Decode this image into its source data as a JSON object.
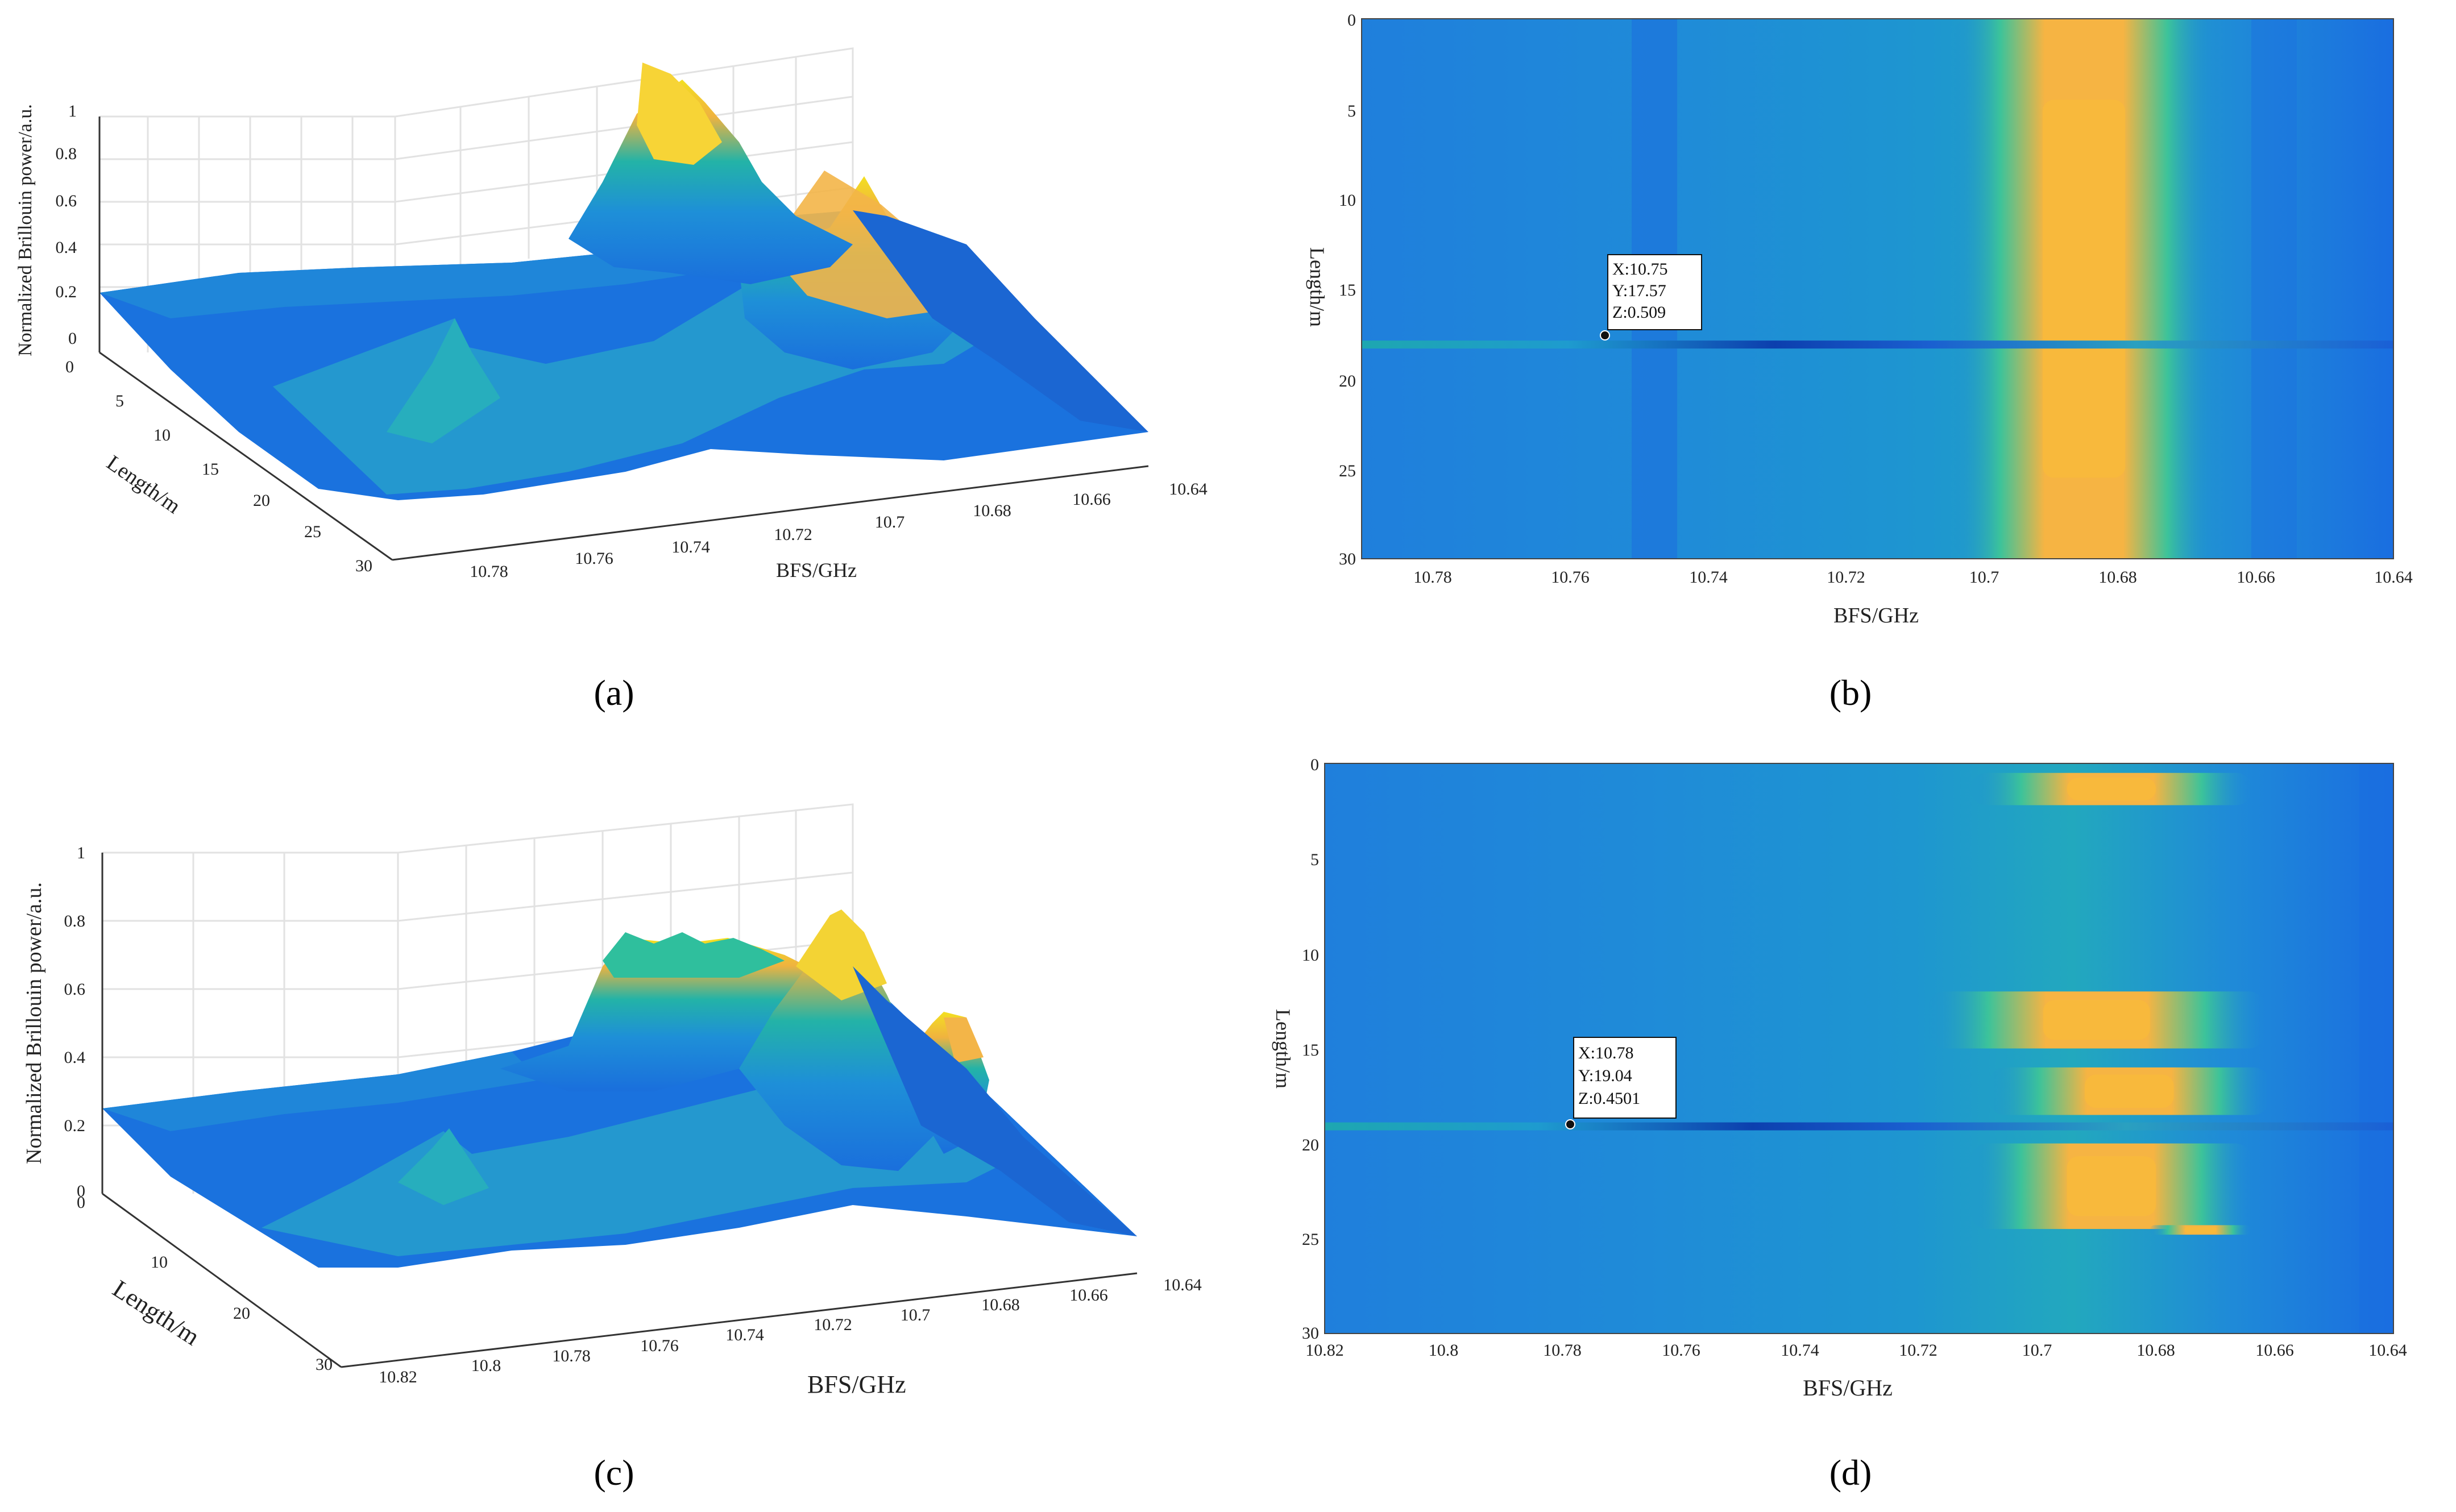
{
  "figure": {
    "panels": [
      "(a)",
      "(b)",
      "(c)",
      "(d)"
    ]
  },
  "colors": {
    "surface_low": "#1a6fdc",
    "surface_mid": "#23b3a7",
    "surface_high": "#f8ba3b",
    "surface_peak": "#f3e020",
    "dark_band": "#0c3fae",
    "grid": "#e2e2e2",
    "axis": "#333333"
  },
  "chart_data": [
    {
      "id": "a",
      "type": "surface3d",
      "label": "(a)",
      "zlabel": "Normalized Brillouin power/a.u.",
      "ylabel": "Length/m",
      "xlabel": "BFS/GHz",
      "zticks": [
        "1",
        "0.8",
        "0.6",
        "0.4",
        "0.2",
        "0"
      ],
      "yticks": [
        "0",
        "5",
        "10",
        "15",
        "20",
        "25",
        "30"
      ],
      "xticks": [
        "10.78",
        "10.76",
        "10.74",
        "10.72",
        "10.7",
        "10.68",
        "10.66",
        "10.64"
      ],
      "zlim": [
        0,
        1
      ],
      "ylim": [
        0,
        30
      ],
      "xlim": [
        10.79,
        10.64
      ],
      "peak": {
        "bfs": 10.68,
        "length": 3,
        "value": 1.0
      }
    },
    {
      "id": "b",
      "type": "heatmap",
      "label": "(b)",
      "xlabel": "BFS/GHz",
      "ylabel": "Length/m",
      "xticks": [
        "10.78",
        "10.76",
        "10.74",
        "10.72",
        "10.7",
        "10.68",
        "10.66",
        "10.64"
      ],
      "yticks": [
        "0",
        "5",
        "10",
        "15",
        "20",
        "25",
        "30"
      ],
      "xlim": [
        10.79,
        10.64
      ],
      "ylim": [
        0,
        30
      ],
      "datatip": {
        "x": 10.75,
        "y": 17.57,
        "z": 0.509,
        "lines": [
          "X:10.75",
          "Y:17.57",
          "Z:0.509"
        ]
      },
      "hot_bands": [
        {
          "bfs_from": 10.695,
          "bfs_to": 10.675,
          "length_from": 0,
          "length_to": 30
        }
      ],
      "dark_line": {
        "length": 18.1,
        "bfs_from": 10.79,
        "bfs_to": 10.64
      }
    },
    {
      "id": "c",
      "type": "surface3d",
      "label": "(c)",
      "zlabel": "Normalized Brillouin power/a.u.",
      "ylabel": "Length/m",
      "xlabel": "BFS/GHz",
      "zticks": [
        "1",
        "0.8",
        "0.6",
        "0.4",
        "0.2",
        "0"
      ],
      "yticks": [
        "0",
        "10",
        "20",
        "30"
      ],
      "xticks": [
        "10.82",
        "10.8",
        "10.78",
        "10.76",
        "10.74",
        "10.72",
        "10.7",
        "10.68",
        "10.66",
        "10.64"
      ],
      "zlim": [
        0,
        1
      ],
      "ylim": [
        0,
        30
      ],
      "xlim": [
        10.82,
        10.64
      ],
      "peak": {
        "bfs": 10.69,
        "length": 17,
        "value": 0.85
      }
    },
    {
      "id": "d",
      "type": "heatmap",
      "label": "(d)",
      "xlabel": "BFS/GHz",
      "ylabel": "Length/m",
      "xticks": [
        "10.82",
        "10.8",
        "10.78",
        "10.76",
        "10.74",
        "10.72",
        "10.7",
        "10.68",
        "10.66",
        "10.64"
      ],
      "yticks": [
        "0",
        "5",
        "10",
        "15",
        "20",
        "25",
        "30"
      ],
      "xlim": [
        10.82,
        10.64
      ],
      "ylim": [
        0,
        30
      ],
      "datatip": {
        "x": 10.78,
        "y": 19.04,
        "z": 0.4501,
        "lines": [
          "X:10.78",
          "Y:19.04",
          "Z:0.4501"
        ]
      },
      "hot_bands": [
        {
          "bfs_from": 10.7,
          "bfs_to": 10.675,
          "length_from": 0.5,
          "length_to": 2.2
        },
        {
          "bfs_from": 10.705,
          "bfs_to": 10.675,
          "length_from": 12,
          "length_to": 15
        },
        {
          "bfs_from": 10.697,
          "bfs_to": 10.672,
          "length_from": 16,
          "length_to": 18.5
        },
        {
          "bfs_from": 10.7,
          "bfs_to": 10.675,
          "length_from": 20,
          "length_to": 24.5
        },
        {
          "bfs_from": 10.677,
          "bfs_to": 10.668,
          "length_from": 24.3,
          "length_to": 24.8
        }
      ],
      "dark_line": {
        "length": 19.1,
        "bfs_from": 10.82,
        "bfs_to": 10.64
      }
    }
  ]
}
